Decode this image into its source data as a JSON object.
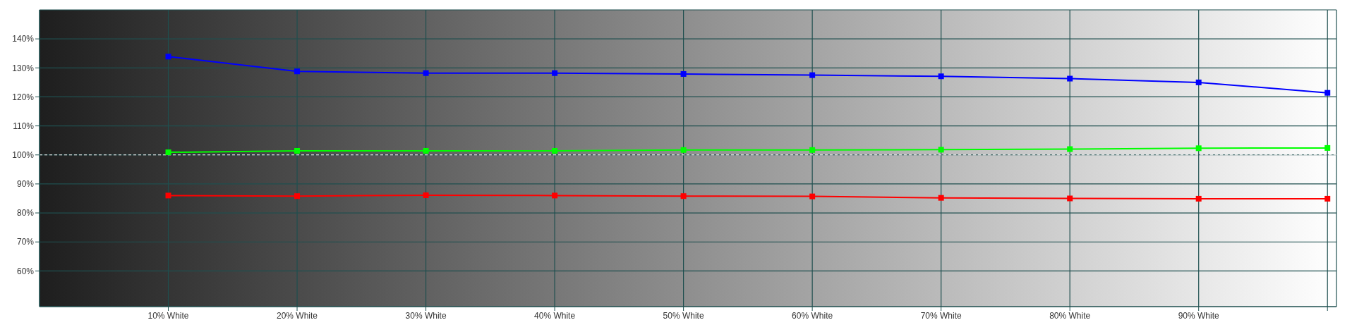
{
  "chart_data": {
    "type": "line",
    "x": [
      10,
      20,
      30,
      40,
      50,
      60,
      70,
      80,
      90,
      100
    ],
    "series": [
      {
        "color": "#0000ff",
        "values": [
          133.9,
          128.8,
          128.2,
          128.2,
          127.9,
          127.5,
          127.1,
          126.3,
          125.0,
          121.4
        ]
      },
      {
        "color": "#00ff00",
        "values": [
          100.9,
          101.4,
          101.4,
          101.4,
          101.7,
          101.7,
          101.8,
          102.0,
          102.3,
          102.4
        ]
      },
      {
        "color": "#ff0000",
        "values": [
          86.0,
          85.8,
          86.1,
          86.0,
          85.8,
          85.7,
          85.2,
          85.0,
          84.9,
          84.9
        ]
      }
    ],
    "xlim": [
      0,
      100.7
    ],
    "xticks": [
      {
        "value": 10,
        "label": "10% White"
      },
      {
        "value": 20,
        "label": "20% White"
      },
      {
        "value": 30,
        "label": "30% White"
      },
      {
        "value": 40,
        "label": "40% White"
      },
      {
        "value": 50,
        "label": "50% White"
      },
      {
        "value": 60,
        "label": "60% White"
      },
      {
        "value": 70,
        "label": "70% White"
      },
      {
        "value": 80,
        "label": "80% White"
      },
      {
        "value": 90,
        "label": "90% White"
      },
      {
        "value": 100,
        "label": null
      }
    ],
    "ylim": [
      47.7,
      150
    ],
    "yticks": [
      {
        "value": 60,
        "label": "60%"
      },
      {
        "value": 70,
        "label": "70%"
      },
      {
        "value": 80,
        "label": "80%"
      },
      {
        "value": 90,
        "label": "90%"
      },
      {
        "value": 100,
        "label": "100%"
      },
      {
        "value": 110,
        "label": "110%"
      },
      {
        "value": 120,
        "label": "120%"
      },
      {
        "value": 130,
        "label": "130%"
      },
      {
        "value": 140,
        "label": "140%"
      }
    ],
    "ref_lines": [
      {
        "axis": "y",
        "value": 100,
        "color": "#ffffff",
        "line_style": "dashed"
      }
    ],
    "grid": true,
    "marker": "square",
    "line_style": "solid"
  }
}
